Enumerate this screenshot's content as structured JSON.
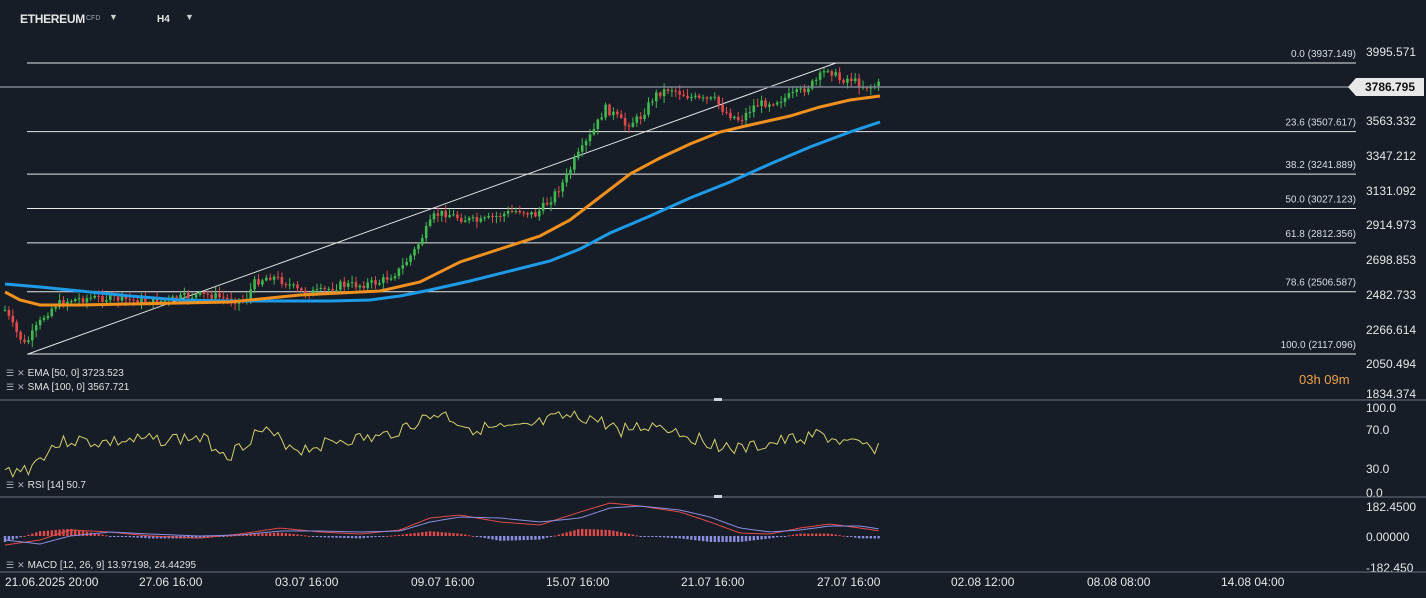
{
  "header": {
    "symbol": "ETHEREUM",
    "symbol_tag": "CFD",
    "timeframe": "H4",
    "dropdown_icon": "caret-down-icon"
  },
  "price_axis": [
    "3995.571",
    "3563.332",
    "3347.212",
    "3131.092",
    "2914.973",
    "2698.853",
    "2482.733",
    "2266.614",
    "2050.494",
    "1834.374"
  ],
  "current_price": "3786.795",
  "countdown": "03h 09m",
  "fib_levels": [
    {
      "label": "0.0 (3937.149)",
      "value": 3937.149
    },
    {
      "label": "23.6 (3507.617)",
      "value": 3507.617
    },
    {
      "label": "38.2 (3241.889)",
      "value": 3241.889
    },
    {
      "label": "50.0 (3027.123)",
      "value": 3027.123
    },
    {
      "label": "61.8 (2812.356)",
      "value": 2812.356
    },
    {
      "label": "78.6 (2506.587)",
      "value": 2506.587
    },
    {
      "label": "100.0 (2117.096)",
      "value": 2117.096
    }
  ],
  "indicators": {
    "ema": "EMA [50, 0]  3723.523",
    "sma": "SMA [100, 0]  3567.721",
    "rsi": "RSI [14]  50.7",
    "macd": "MACD [12, 26, 9]  13.97198,   24.44295"
  },
  "rsi_axis": [
    "100.0",
    "70.0",
    "30.0",
    "0.0"
  ],
  "macd_axis": [
    "182.4500",
    "0.00000",
    "-182.450"
  ],
  "time_axis": [
    "21.06.2025  20:00",
    "27.06  16:00",
    "03.07  16:00",
    "09.07  16:00",
    "15.07  16:00",
    "21.07  16:00",
    "27.07  16:00",
    "02.08  12:00",
    "08.08  08:00",
    "14.08  04:00"
  ],
  "colors": {
    "background": "#161d26",
    "up_candle": "#3fb950",
    "down_candle": "#e04a4a",
    "ema": "#f0901e",
    "sma": "#1e9be8",
    "rsi_line": "#d4cf6a",
    "macd_line": "#e04a4a",
    "signal_line": "#8a8ee0",
    "hist_pos": "#e04a4a",
    "hist_neg": "#8a8ee0"
  }
}
